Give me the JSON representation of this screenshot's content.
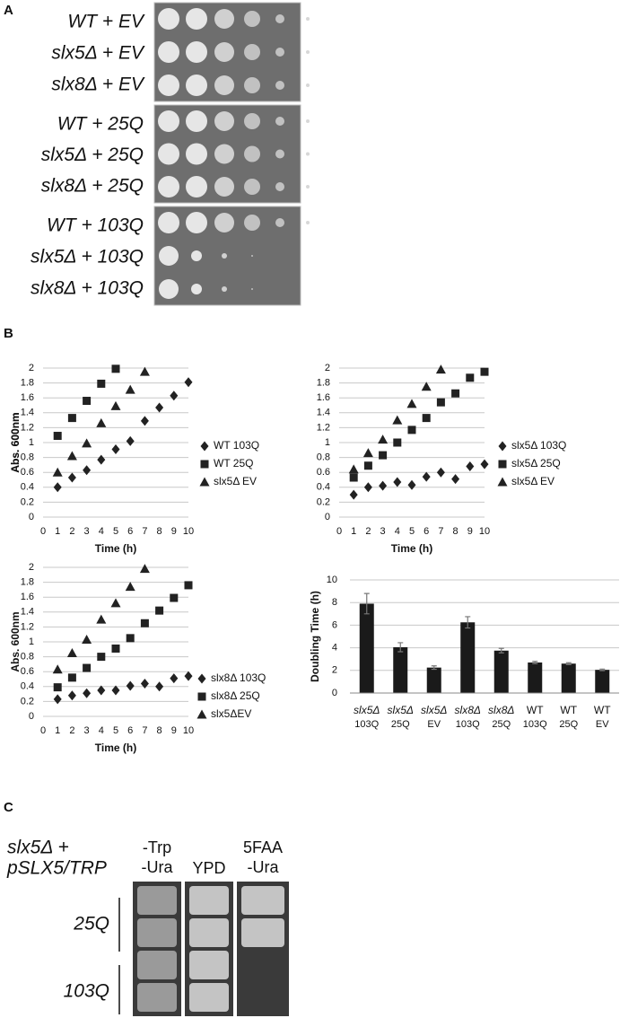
{
  "panel_a": {
    "label": "A",
    "rows": [
      "WT + EV",
      "slx5Δ + EV",
      "slx8Δ + EV",
      "WT + 25Q",
      "slx5Δ + 25Q",
      "slx8Δ + 25Q",
      "WT + 103Q",
      "slx5Δ + 103Q",
      "slx8Δ + 103Q"
    ]
  },
  "panel_b": {
    "label": "B"
  },
  "chart_data": [
    {
      "type": "scatter",
      "xlabel": "Time (h)",
      "ylabel": "Abs. 600nm",
      "x": [
        1,
        2,
        3,
        4,
        5,
        6,
        7,
        8,
        9,
        10
      ],
      "xlim": [
        0,
        10
      ],
      "xticks": [
        0,
        1,
        2,
        3,
        4,
        5,
        6,
        7,
        8,
        9,
        10
      ],
      "ylim": [
        0,
        2
      ],
      "yticks": [
        0,
        0.2,
        0.4,
        0.6,
        0.8,
        1,
        1.2,
        1.4,
        1.6,
        1.8,
        2
      ],
      "grid": true,
      "series": [
        {
          "name": "WT 103Q",
          "marker": "diamond",
          "color": "#222222",
          "values": [
            0.4,
            0.53,
            0.63,
            0.77,
            0.91,
            1.02,
            1.29,
            1.47,
            1.63,
            1.81
          ]
        },
        {
          "name": "WT 25Q",
          "marker": "square",
          "color": "#222222",
          "values": [
            1.09,
            1.33,
            1.56,
            1.79,
            1.99,
            null,
            null,
            null,
            null,
            null
          ]
        },
        {
          "name": "slx5Δ EV",
          "marker": "triangle",
          "color": "#222222",
          "values": [
            0.6,
            0.82,
            0.99,
            1.26,
            1.49,
            1.71,
            1.95,
            null,
            null,
            null
          ]
        }
      ]
    },
    {
      "type": "scatter",
      "xlabel": "Time (h)",
      "ylabel": "Abs. 600nm",
      "x": [
        1,
        2,
        3,
        4,
        5,
        6,
        7,
        8,
        9,
        10
      ],
      "xlim": [
        0,
        10
      ],
      "xticks": [
        0,
        1,
        2,
        3,
        4,
        5,
        6,
        7,
        8,
        9,
        10
      ],
      "ylim": [
        0,
        2
      ],
      "yticks": [
        0,
        0.2,
        0.4,
        0.6,
        0.8,
        1,
        1.2,
        1.4,
        1.6,
        1.8,
        2
      ],
      "grid": true,
      "series": [
        {
          "name": "slx5Δ 103Q",
          "marker": "diamond",
          "color": "#222222",
          "values": [
            0.3,
            0.4,
            0.42,
            0.47,
            0.43,
            0.54,
            0.6,
            0.51,
            0.68,
            0.71
          ]
        },
        {
          "name": "slx5Δ 25Q",
          "marker": "square",
          "color": "#222222",
          "values": [
            0.53,
            0.69,
            0.83,
            1.0,
            1.17,
            1.33,
            1.54,
            1.66,
            1.87,
            1.95
          ]
        },
        {
          "name": "slx5Δ EV",
          "marker": "triangle",
          "color": "#222222",
          "values": [
            0.64,
            0.86,
            1.04,
            1.3,
            1.52,
            1.75,
            1.98,
            null,
            null,
            null
          ]
        }
      ]
    },
    {
      "type": "scatter",
      "xlabel": "Time (h)",
      "ylabel": "Abs. 600nm",
      "x": [
        1,
        2,
        3,
        4,
        5,
        6,
        7,
        8,
        9,
        10
      ],
      "xlim": [
        0,
        10
      ],
      "xticks": [
        0,
        1,
        2,
        3,
        4,
        5,
        6,
        7,
        8,
        9,
        10
      ],
      "ylim": [
        0,
        2
      ],
      "yticks": [
        0,
        0.2,
        0.4,
        0.6,
        0.8,
        1,
        1.2,
        1.4,
        1.6,
        1.8,
        2
      ],
      "grid": true,
      "series": [
        {
          "name": "slx8Δ 103Q",
          "marker": "diamond",
          "color": "#222222",
          "values": [
            0.23,
            0.28,
            0.31,
            0.35,
            0.35,
            0.41,
            0.44,
            0.4,
            0.51,
            0.54
          ]
        },
        {
          "name": "slx8Δ 25Q",
          "marker": "square",
          "color": "#222222",
          "values": [
            0.39,
            0.52,
            0.65,
            0.8,
            0.91,
            1.05,
            1.25,
            1.42,
            1.59,
            1.76
          ]
        },
        {
          "name": "slx5ΔEV",
          "marker": "triangle",
          "color": "#222222",
          "values": [
            0.63,
            0.85,
            1.03,
            1.3,
            1.52,
            1.74,
            1.98,
            null,
            null,
            null
          ]
        }
      ]
    },
    {
      "type": "bar",
      "ylabel": "Doubling Time (h)",
      "color": "#1a1a1a",
      "categories": [
        [
          "slx5Δ",
          "103Q"
        ],
        [
          "slx5Δ",
          "25Q"
        ],
        [
          "slx5Δ",
          "EV"
        ],
        [
          "slx8Δ",
          "103Q"
        ],
        [
          "slx8Δ",
          "25Q"
        ],
        [
          "WT",
          "103Q"
        ],
        [
          "WT",
          "25Q"
        ],
        [
          "WT",
          "EV"
        ]
      ],
      "values": [
        7.9,
        4.05,
        2.25,
        6.25,
        3.75,
        2.7,
        2.6,
        2.05
      ],
      "errors": [
        0.9,
        0.4,
        0.15,
        0.5,
        0.2,
        0.1,
        0.08,
        0.07
      ],
      "ylim": [
        0,
        10
      ],
      "yticks": [
        0,
        2,
        4,
        6,
        8,
        10
      ],
      "grid": true
    }
  ],
  "panel_c": {
    "label": "C",
    "strain": [
      "slx5Δ +",
      "pSLX5/TRP"
    ],
    "columns": [
      [
        "-Trp",
        "-Ura"
      ],
      [
        "YPD"
      ],
      [
        "5FAA",
        "-Ura"
      ]
    ],
    "rows": [
      "25Q",
      "103Q"
    ]
  }
}
